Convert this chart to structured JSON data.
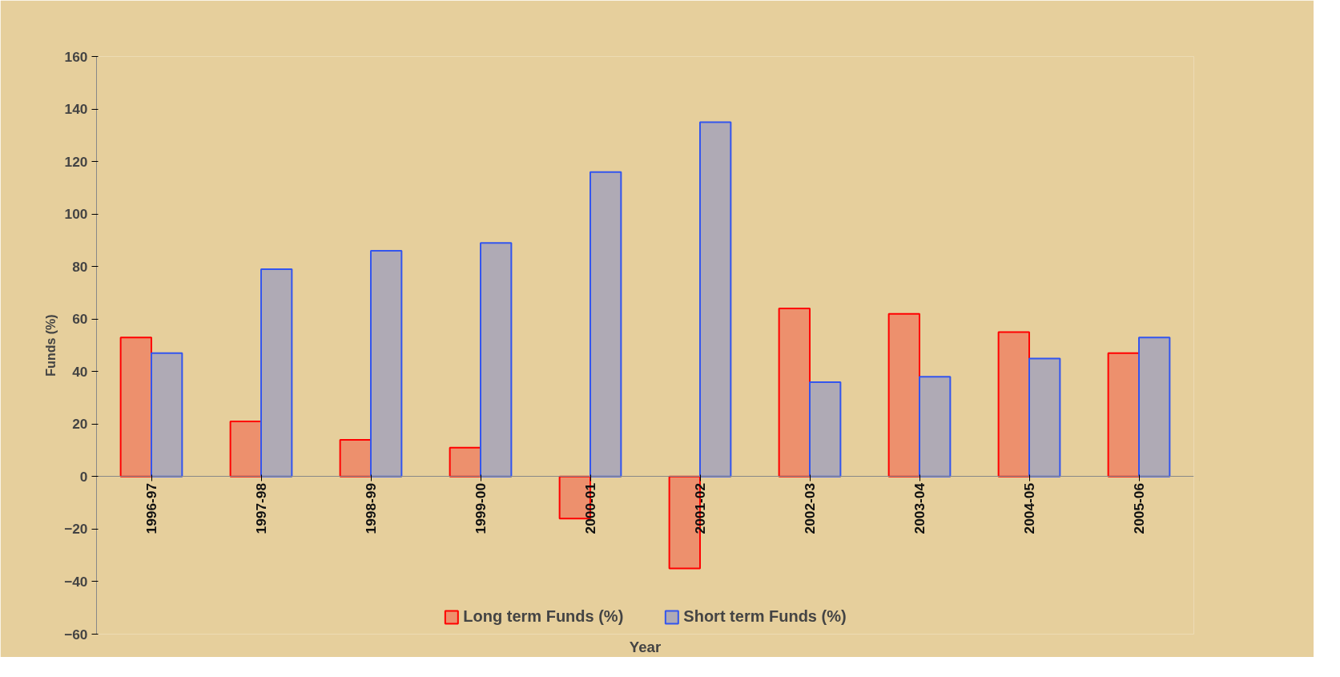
{
  "chart_data": {
    "type": "bar",
    "xlabel": "Year",
    "ylabel": "Funds (%)",
    "categories": [
      "1996-97",
      "1997-98",
      "1998-99",
      "1999-00",
      "2000-01",
      "2001-02",
      "2002-03",
      "2003-04",
      "2004-05",
      "2005-06"
    ],
    "series": [
      {
        "name": "Long term Funds (%)",
        "color": "#ff0000",
        "values": [
          53,
          21,
          14,
          11,
          -16,
          -35,
          64,
          62,
          55,
          47
        ]
      },
      {
        "name": "Short term Funds (%)",
        "color": "#3355ee",
        "values": [
          47,
          79,
          86,
          89,
          116,
          135,
          36,
          38,
          45,
          53
        ]
      }
    ],
    "ylim": [
      -60,
      160
    ],
    "yticks": [
      -60,
      -40,
      -20,
      0,
      20,
      40,
      60,
      80,
      100,
      120,
      140,
      160
    ],
    "grid": false,
    "legend": "bottom"
  }
}
